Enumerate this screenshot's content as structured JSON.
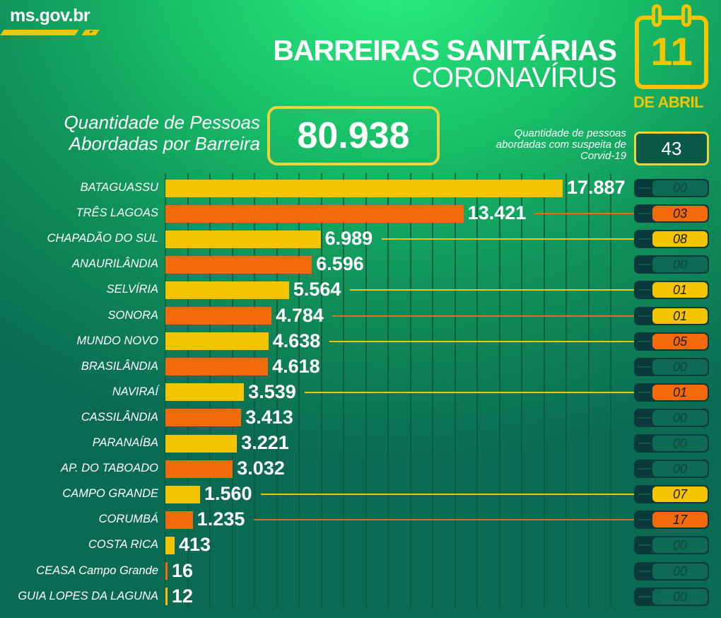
{
  "header": {
    "logo": "ms.gov.br",
    "title": "BARREIRAS SANITÁRIAS",
    "subtitle": "CORONAVÍRUS",
    "day": "11",
    "month": "DE ABRIL"
  },
  "summary": {
    "total_label": "Quantidade de Pessoas Abordadas por Barreira",
    "total": "80.938",
    "suspect_label": "Quantidade de pessoas abordadas com suspeita de Corvid-19",
    "suspect_total": "43"
  },
  "colors": {
    "yellow": "#f5c400",
    "orange": "#f26a0c",
    "badge_empty": "#0e6a52"
  },
  "chart_data": {
    "type": "bar",
    "orientation": "horizontal",
    "grid": true,
    "categories": [
      "BATAGUASSU",
      "TRÊS LAGOAS",
      "CHAPADÃO DO SUL",
      "ANAURILÂNDIA",
      "SELVÍRIA",
      "SONORA",
      "MUNDO NOVO",
      "BRASILÂNDIA",
      "NAVIRAÍ",
      "CASSILÂNDIA",
      "PARANAÍBA",
      "AP. DO TABOADO",
      "CAMPO GRANDE",
      "CORUMBÁ",
      "COSTA RICA",
      "CEASA Campo Grande",
      "GUIA LOPES DA LAGUNA"
    ],
    "values": [
      17887,
      13421,
      6989,
      6596,
      5564,
      4784,
      4638,
      4618,
      3539,
      3413,
      3221,
      3032,
      1560,
      1235,
      413,
      16,
      12
    ],
    "value_labels": [
      "17.887",
      "13.421",
      "6.989",
      "6.596",
      "5.564",
      "4.784",
      "4.638",
      "4.618",
      "3.539",
      "3.413",
      "3.221",
      "3.032",
      "1.560",
      "1.235",
      "413",
      "16",
      "12"
    ],
    "suspects": [
      "00",
      "03",
      "08",
      "00",
      "01",
      "01",
      "05",
      "00",
      "01",
      "00",
      "00",
      "00",
      "07",
      "17",
      "00",
      "00",
      "00"
    ],
    "badge_colors": [
      "empty",
      "orange",
      "yellow",
      "empty",
      "yellow",
      "yellow",
      "orange",
      "empty",
      "orange",
      "empty",
      "empty",
      "empty",
      "yellow",
      "orange",
      "empty",
      "empty",
      "empty"
    ]
  }
}
